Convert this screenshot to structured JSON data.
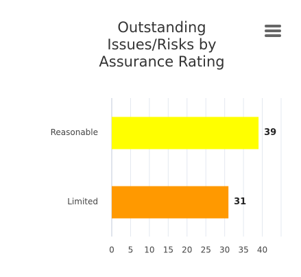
{
  "chart_data": {
    "type": "bar",
    "orientation": "horizontal",
    "title": "Outstanding Issues/Risks by Assurance Rating",
    "categories": [
      "Reasonable",
      "Limited"
    ],
    "values": [
      39,
      31
    ],
    "colors": [
      "#ffff00",
      "#ff9900"
    ],
    "xlim": [
      0,
      45
    ],
    "xticks": [
      0,
      5,
      10,
      15,
      20,
      25,
      30,
      35,
      40
    ],
    "grid": true
  }
}
